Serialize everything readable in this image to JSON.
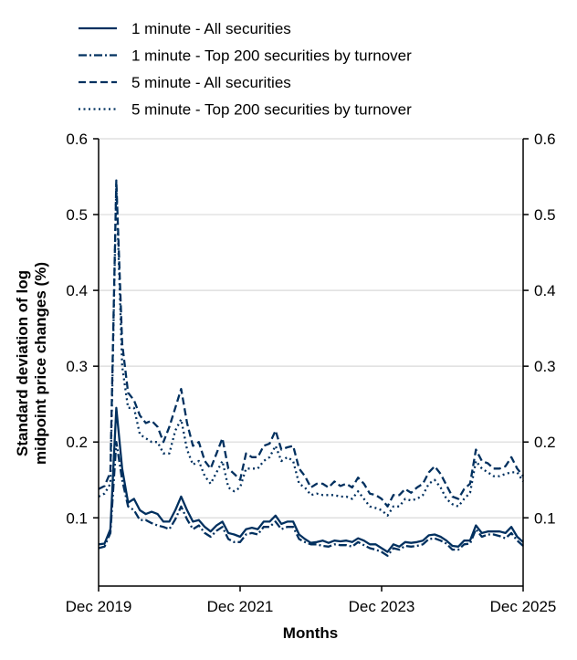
{
  "chart_data": {
    "type": "line",
    "title": "",
    "xlabel": "Months",
    "ylabel_lines": [
      "Standard deviation of log",
      "midpoint price changes (%)"
    ],
    "x_ticks": [
      "Dec 2019",
      "Dec 2021",
      "Dec 2023",
      "Dec 2025"
    ],
    "x_range": [
      "2019-12",
      "2025-12"
    ],
    "frequency": "monthly",
    "y_ticks": [
      0.1,
      0.2,
      0.3,
      0.4,
      0.5,
      0.6
    ],
    "y_tick_labels": [
      "0.1",
      "0.2",
      "0.3",
      "0.4",
      "0.5",
      "0.6"
    ],
    "ylim": [
      0.01,
      0.6
    ],
    "secondary_y_axis": true,
    "grid": "horizontal",
    "legend_position": "top",
    "color": "#00305f",
    "series": [
      {
        "name": "1 minute - All securities",
        "style": "solid",
        "values": [
          0.065,
          0.066,
          0.085,
          0.245,
          0.165,
          0.12,
          0.125,
          0.11,
          0.105,
          0.108,
          0.105,
          0.095,
          0.095,
          0.11,
          0.128,
          0.11,
          0.095,
          0.097,
          0.088,
          0.082,
          0.09,
          0.095,
          0.08,
          0.078,
          0.075,
          0.085,
          0.087,
          0.085,
          0.095,
          0.095,
          0.103,
          0.092,
          0.095,
          0.095,
          0.078,
          0.072,
          0.067,
          0.068,
          0.07,
          0.067,
          0.07,
          0.069,
          0.07,
          0.068,
          0.073,
          0.07,
          0.065,
          0.065,
          0.06,
          0.055,
          0.065,
          0.062,
          0.068,
          0.067,
          0.068,
          0.07,
          0.077,
          0.078,
          0.075,
          0.07,
          0.063,
          0.062,
          0.07,
          0.07,
          0.09,
          0.08,
          0.082,
          0.082,
          0.082,
          0.08,
          0.088,
          0.075,
          0.068
        ]
      },
      {
        "name": "1 minute - Top 200 securities by turnover",
        "style": "dashdot",
        "values": [
          0.06,
          0.062,
          0.08,
          0.2,
          0.15,
          0.115,
          0.11,
          0.097,
          0.097,
          0.093,
          0.09,
          0.088,
          0.085,
          0.098,
          0.115,
          0.098,
          0.085,
          0.09,
          0.08,
          0.075,
          0.083,
          0.088,
          0.072,
          0.068,
          0.068,
          0.078,
          0.08,
          0.078,
          0.088,
          0.088,
          0.095,
          0.085,
          0.088,
          0.088,
          0.072,
          0.068,
          0.065,
          0.065,
          0.063,
          0.062,
          0.065,
          0.064,
          0.064,
          0.062,
          0.068,
          0.064,
          0.06,
          0.058,
          0.055,
          0.05,
          0.06,
          0.058,
          0.063,
          0.062,
          0.063,
          0.065,
          0.072,
          0.073,
          0.07,
          0.066,
          0.058,
          0.058,
          0.065,
          0.066,
          0.085,
          0.075,
          0.078,
          0.078,
          0.076,
          0.073,
          0.08,
          0.07,
          0.063
        ]
      },
      {
        "name": "5 minute - All securities",
        "style": "dashed",
        "values": [
          0.138,
          0.142,
          0.16,
          0.545,
          0.33,
          0.265,
          0.255,
          0.235,
          0.225,
          0.228,
          0.22,
          0.2,
          0.22,
          0.245,
          0.27,
          0.225,
          0.195,
          0.2,
          0.175,
          0.165,
          0.185,
          0.205,
          0.165,
          0.158,
          0.15,
          0.185,
          0.18,
          0.18,
          0.195,
          0.198,
          0.215,
          0.19,
          0.193,
          0.195,
          0.165,
          0.155,
          0.14,
          0.145,
          0.145,
          0.14,
          0.148,
          0.142,
          0.145,
          0.14,
          0.153,
          0.145,
          0.132,
          0.13,
          0.125,
          0.115,
          0.13,
          0.13,
          0.138,
          0.133,
          0.14,
          0.145,
          0.16,
          0.168,
          0.158,
          0.143,
          0.128,
          0.125,
          0.138,
          0.145,
          0.19,
          0.175,
          0.172,
          0.165,
          0.165,
          0.168,
          0.18,
          0.165,
          0.155
        ]
      },
      {
        "name": "5 minute - Top 200 securities by turnover",
        "style": "dotted",
        "values": [
          0.128,
          0.132,
          0.145,
          0.54,
          0.3,
          0.245,
          0.245,
          0.21,
          0.205,
          0.2,
          0.2,
          0.185,
          0.185,
          0.215,
          0.23,
          0.19,
          0.17,
          0.175,
          0.155,
          0.145,
          0.16,
          0.175,
          0.14,
          0.135,
          0.14,
          0.165,
          0.165,
          0.165,
          0.175,
          0.18,
          0.195,
          0.175,
          0.18,
          0.175,
          0.145,
          0.14,
          0.13,
          0.132,
          0.13,
          0.13,
          0.13,
          0.128,
          0.128,
          0.125,
          0.135,
          0.125,
          0.115,
          0.113,
          0.11,
          0.103,
          0.115,
          0.115,
          0.125,
          0.123,
          0.125,
          0.13,
          0.145,
          0.15,
          0.14,
          0.125,
          0.118,
          0.115,
          0.125,
          0.133,
          0.175,
          0.165,
          0.16,
          0.155,
          0.155,
          0.158,
          0.16,
          0.16,
          0.148
        ]
      }
    ]
  }
}
